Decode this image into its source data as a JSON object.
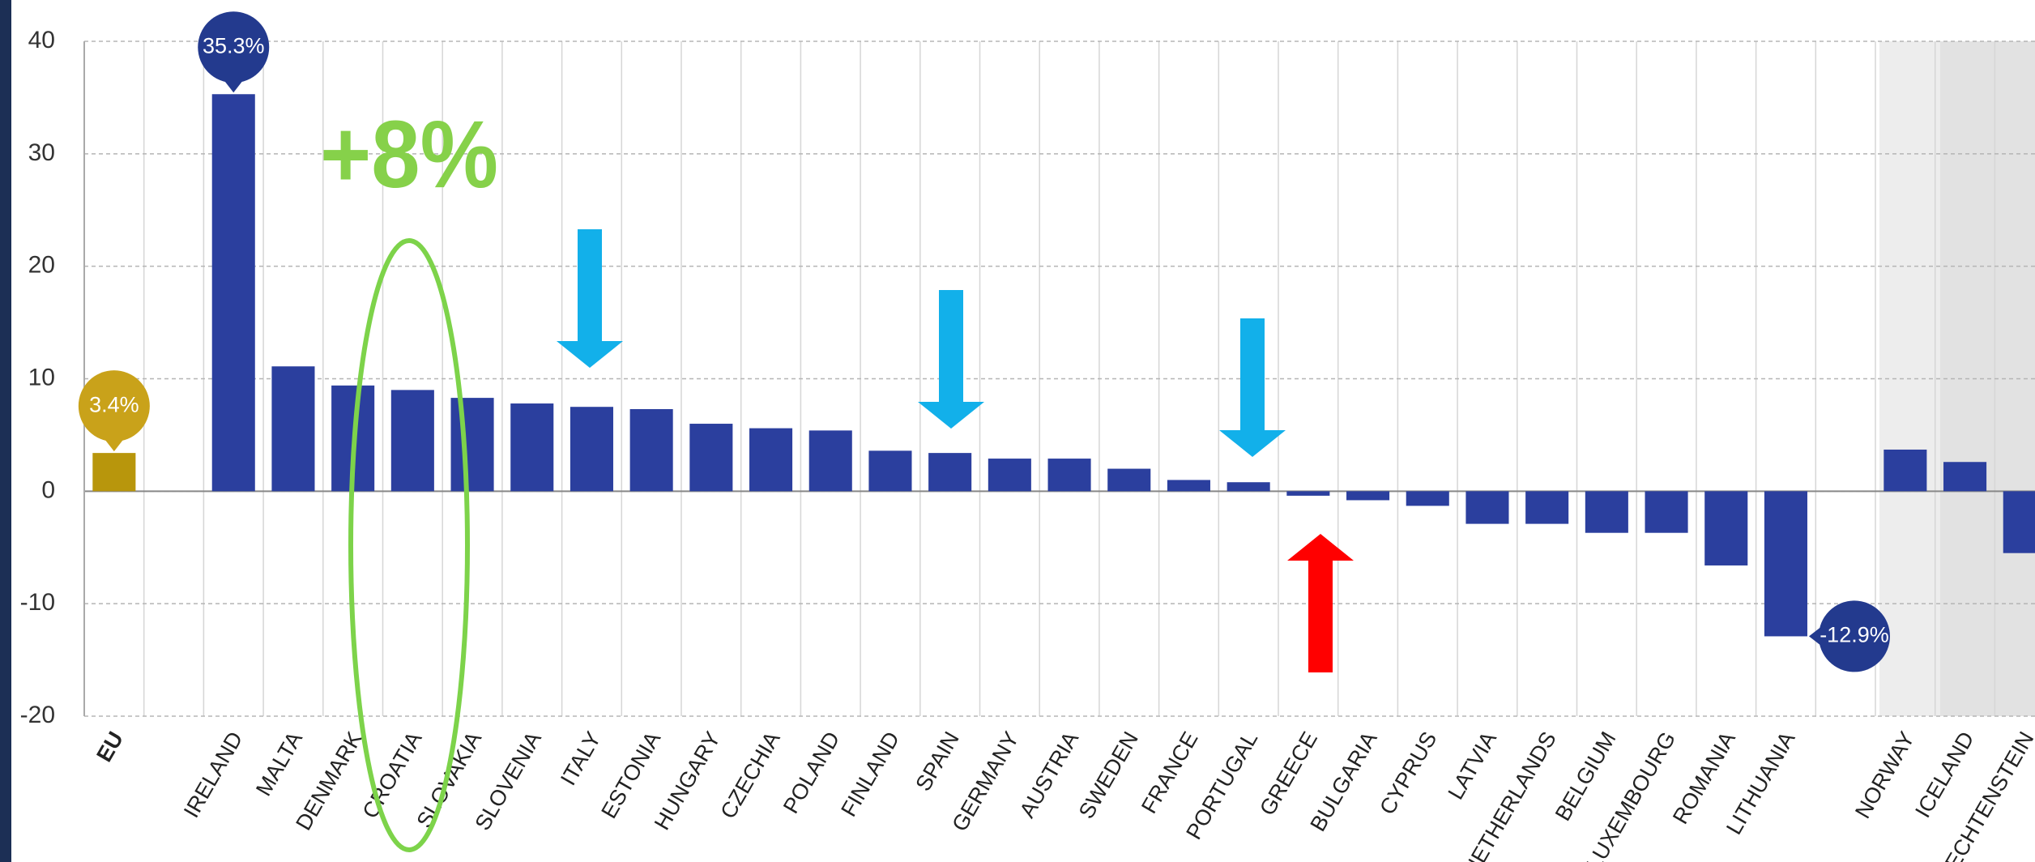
{
  "chart_data": {
    "type": "bar",
    "categories": [
      "EU",
      null,
      "IRELAND",
      "MALTA",
      "DENMARK",
      "CROATIA",
      "SLOVAKIA",
      "SLOVENIA",
      "ITALY",
      "ESTONIA",
      "HUNGARY",
      "CZECHIA",
      "POLAND",
      "FINLAND",
      "SPAIN",
      "GERMANY",
      "AUSTRIA",
      "SWEDEN",
      "FRANCE",
      "PORTUGAL",
      "GREECE",
      "BULGARIA",
      "CYPRUS",
      "LATVIA",
      "NETHERLANDS",
      "BELGIUM",
      "LUXEMBOURG",
      "ROMANIA",
      "LITHUANIA",
      null,
      "NORWAY",
      "ICELAND",
      "LIECHTENSTEIN"
    ],
    "values": [
      3.4,
      null,
      35.3,
      11.1,
      9.4,
      9.0,
      8.3,
      7.8,
      7.5,
      7.3,
      6.0,
      5.6,
      5.4,
      3.6,
      3.4,
      2.9,
      2.9,
      2.0,
      1.0,
      0.8,
      -0.4,
      -0.8,
      -1.3,
      -2.9,
      -2.9,
      -3.7,
      -3.7,
      -6.6,
      -12.9,
      null,
      3.7,
      2.6,
      -5.5
    ],
    "value_labels": [
      "3.4%",
      null,
      "35.3%",
      null,
      null,
      null,
      null,
      null,
      null,
      null,
      null,
      null,
      null,
      null,
      null,
      null,
      null,
      null,
      null,
      null,
      null,
      null,
      null,
      null,
      null,
      null,
      null,
      null,
      "-12.9%",
      null,
      null,
      null,
      null
    ],
    "colors": [
      "#b8960c",
      null,
      "#2b3f9e",
      "#2b3f9e",
      "#2b3f9e",
      "#2b3f9e",
      "#2b3f9e",
      "#2b3f9e",
      "#2b3f9e",
      "#2b3f9e",
      "#2b3f9e",
      "#2b3f9e",
      "#2b3f9e",
      "#2b3f9e",
      "#2b3f9e",
      "#2b3f9e",
      "#2b3f9e",
      "#2b3f9e",
      "#2b3f9e",
      "#2b3f9e",
      "#2b3f9e",
      "#2b3f9e",
      "#2b3f9e",
      "#2b3f9e",
      "#2b3f9e",
      "#2b3f9e",
      "#2b3f9e",
      "#2b3f9e",
      "#2b3f9e",
      null,
      "#2b3f9e",
      "#2b3f9e",
      "#2b3f9e"
    ],
    "ylim": [
      -20,
      40
    ],
    "yticks": [
      -20,
      -10,
      0,
      10,
      20,
      30,
      40
    ],
    "grid": true,
    "annotations": [
      "+8%"
    ]
  }
}
